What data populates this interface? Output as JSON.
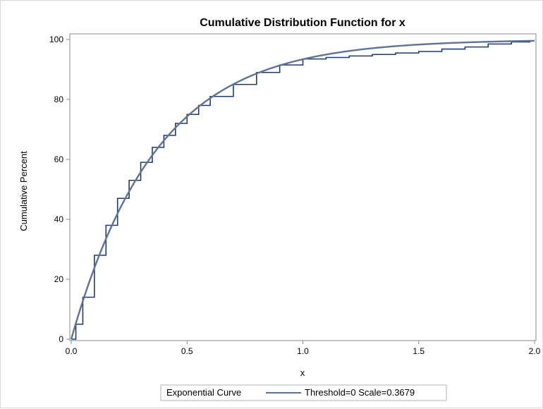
{
  "chart_data": {
    "type": "line",
    "title": "Cumulative Distribution Function for x",
    "xlabel": "x",
    "ylabel": "Cumulative Percent",
    "xlim": [
      0,
      2
    ],
    "ylim": [
      0,
      100
    ],
    "x_ticks": [
      "0.0",
      "0.5",
      "1.0",
      "1.5",
      "2.0"
    ],
    "y_ticks": [
      "0",
      "20",
      "40",
      "60",
      "80",
      "100"
    ],
    "grid": false,
    "legend": {
      "placement": "bottom",
      "title": "Exponential Curve",
      "entries": [
        {
          "label": "Threshold=0 Scale=0.3679",
          "color": "#5f7396"
        }
      ]
    },
    "series": [
      {
        "color": "#1f3b73",
        "style": "step",
        "x": [
          0,
          0.02,
          0.05,
          0.1,
          0.15,
          0.2,
          0.25,
          0.3,
          0.35,
          0.4,
          0.45,
          0.5,
          0.55,
          0.6,
          0.7,
          0.8,
          0.9,
          1.0,
          1.1,
          1.2,
          1.3,
          1.4,
          1.5,
          1.6,
          1.7,
          1.8,
          1.9,
          1.98
        ],
        "y": [
          0,
          5,
          14,
          28,
          38,
          47,
          53,
          59,
          64,
          68,
          72,
          75,
          78,
          81,
          85,
          89,
          91.5,
          93.5,
          94,
          94.5,
          95,
          95.5,
          96,
          96.8,
          97.5,
          98.5,
          99.2,
          99.7
        ]
      },
      {
        "name": "Threshold=0 Scale=0.3679",
        "color": "#5f7396",
        "style": "curve",
        "scale": 0.3679,
        "threshold": 0
      }
    ]
  }
}
